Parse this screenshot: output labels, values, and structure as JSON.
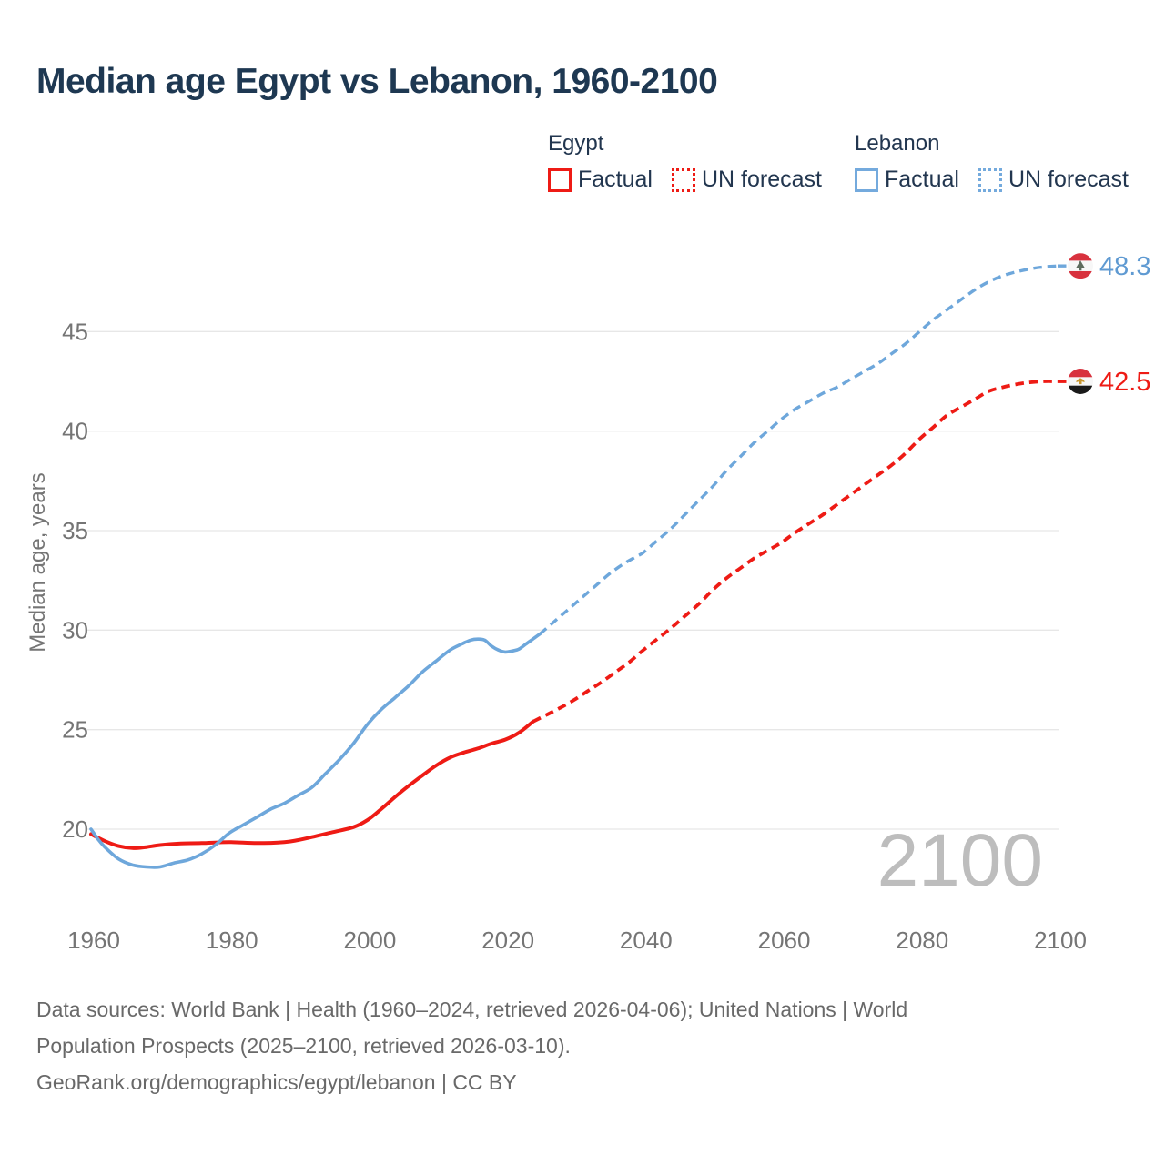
{
  "header": {
    "title": "Median age Egypt vs Lebanon, 1960-2100"
  },
  "legend": {
    "groups": [
      {
        "title": "Egypt",
        "color": "#ee1b15",
        "items": [
          {
            "label": "Factual",
            "style": "solid"
          },
          {
            "label": "UN forecast",
            "style": "dotted"
          }
        ]
      },
      {
        "title": "Lebanon",
        "color": "#74aadd",
        "items": [
          {
            "label": "Factual",
            "style": "solid"
          },
          {
            "label": "UN forecast",
            "style": "dotted"
          }
        ]
      }
    ]
  },
  "chart_data": {
    "type": "line",
    "title": "Median age Egypt vs Lebanon, 1960-2100",
    "xlabel": "",
    "ylabel": "Median age, years",
    "xticks": [
      1960,
      1980,
      2000,
      2020,
      2040,
      2060,
      2080,
      2100
    ],
    "yticks": [
      20,
      25,
      30,
      35,
      40,
      45
    ],
    "xlim": [
      1959,
      2113
    ],
    "ylim": [
      17.5,
      49.5
    ],
    "grid": true,
    "legend_position": "top",
    "watermark": "2100",
    "series": [
      {
        "name": "Egypt factual",
        "color": "#ee1b15",
        "dashed": false,
        "width": 4,
        "points": [
          [
            1960,
            19.75
          ],
          [
            1962,
            19.4
          ],
          [
            1964,
            19.15
          ],
          [
            1966,
            19.05
          ],
          [
            1968,
            19.1
          ],
          [
            1970,
            19.2
          ],
          [
            1973,
            19.28
          ],
          [
            1976,
            19.3
          ],
          [
            1980,
            19.35
          ],
          [
            1984,
            19.3
          ],
          [
            1988,
            19.35
          ],
          [
            1990,
            19.45
          ],
          [
            1992,
            19.6
          ],
          [
            1995,
            19.85
          ],
          [
            1998,
            20.1
          ],
          [
            2000,
            20.45
          ],
          [
            2002,
            21.0
          ],
          [
            2005,
            21.9
          ],
          [
            2008,
            22.7
          ],
          [
            2010,
            23.2
          ],
          [
            2012,
            23.6
          ],
          [
            2014,
            23.85
          ],
          [
            2016,
            24.05
          ],
          [
            2018,
            24.3
          ],
          [
            2020,
            24.5
          ],
          [
            2022,
            24.85
          ],
          [
            2024,
            25.4
          ]
        ]
      },
      {
        "name": "Egypt UN forecast",
        "color": "#ee1b15",
        "dashed": true,
        "width": 3.8,
        "points": [
          [
            2024,
            25.4
          ],
          [
            2026,
            25.75
          ],
          [
            2028,
            26.1
          ],
          [
            2030,
            26.5
          ],
          [
            2032,
            26.95
          ],
          [
            2034,
            27.4
          ],
          [
            2036,
            27.9
          ],
          [
            2038,
            28.4
          ],
          [
            2040,
            29.0
          ],
          [
            2042,
            29.55
          ],
          [
            2044,
            30.1
          ],
          [
            2046,
            30.7
          ],
          [
            2048,
            31.3
          ],
          [
            2050,
            32.0
          ],
          [
            2052,
            32.6
          ],
          [
            2054,
            33.1
          ],
          [
            2056,
            33.6
          ],
          [
            2058,
            34.0
          ],
          [
            2060,
            34.4
          ],
          [
            2062,
            34.9
          ],
          [
            2064,
            35.35
          ],
          [
            2066,
            35.8
          ],
          [
            2068,
            36.3
          ],
          [
            2070,
            36.8
          ],
          [
            2072,
            37.3
          ],
          [
            2074,
            37.8
          ],
          [
            2076,
            38.3
          ],
          [
            2078,
            38.9
          ],
          [
            2080,
            39.6
          ],
          [
            2082,
            40.2
          ],
          [
            2084,
            40.8
          ],
          [
            2086,
            41.2
          ],
          [
            2088,
            41.6
          ],
          [
            2090,
            42.0
          ],
          [
            2092,
            42.2
          ],
          [
            2094,
            42.35
          ],
          [
            2096,
            42.45
          ],
          [
            2098,
            42.5
          ],
          [
            2100,
            42.5
          ]
        ]
      },
      {
        "name": "Lebanon factual",
        "color": "#6ea7db",
        "dashed": false,
        "width": 3.6,
        "points": [
          [
            1960,
            20.0
          ],
          [
            1961,
            19.5
          ],
          [
            1962,
            19.1
          ],
          [
            1964,
            18.5
          ],
          [
            1966,
            18.2
          ],
          [
            1968,
            18.1
          ],
          [
            1970,
            18.1
          ],
          [
            1972,
            18.3
          ],
          [
            1974,
            18.45
          ],
          [
            1976,
            18.75
          ],
          [
            1978,
            19.2
          ],
          [
            1980,
            19.8
          ],
          [
            1982,
            20.2
          ],
          [
            1984,
            20.6
          ],
          [
            1986,
            21.0
          ],
          [
            1988,
            21.3
          ],
          [
            1990,
            21.7
          ],
          [
            1992,
            22.1
          ],
          [
            1994,
            22.8
          ],
          [
            1996,
            23.5
          ],
          [
            1998,
            24.3
          ],
          [
            2000,
            25.25
          ],
          [
            2002,
            26.0
          ],
          [
            2004,
            26.6
          ],
          [
            2006,
            27.2
          ],
          [
            2008,
            27.9
          ],
          [
            2010,
            28.45
          ],
          [
            2012,
            29.0
          ],
          [
            2014,
            29.35
          ],
          [
            2015,
            29.5
          ],
          [
            2016,
            29.55
          ],
          [
            2017,
            29.5
          ],
          [
            2018,
            29.2
          ],
          [
            2019,
            29.0
          ],
          [
            2020,
            28.9
          ],
          [
            2021,
            28.95
          ],
          [
            2022,
            29.05
          ],
          [
            2023,
            29.3
          ],
          [
            2024,
            29.55
          ],
          [
            2025,
            29.8
          ]
        ]
      },
      {
        "name": "Lebanon UN forecast",
        "color": "#6ea7db",
        "dashed": true,
        "width": 3.4,
        "points": [
          [
            2025,
            29.8
          ],
          [
            2027,
            30.4
          ],
          [
            2029,
            31.0
          ],
          [
            2031,
            31.6
          ],
          [
            2033,
            32.2
          ],
          [
            2035,
            32.8
          ],
          [
            2037,
            33.3
          ],
          [
            2039,
            33.7
          ],
          [
            2040,
            33.9
          ],
          [
            2042,
            34.5
          ],
          [
            2044,
            35.1
          ],
          [
            2046,
            35.8
          ],
          [
            2048,
            36.5
          ],
          [
            2050,
            37.2
          ],
          [
            2052,
            38.0
          ],
          [
            2054,
            38.7
          ],
          [
            2056,
            39.4
          ],
          [
            2058,
            40.0
          ],
          [
            2060,
            40.6
          ],
          [
            2062,
            41.1
          ],
          [
            2064,
            41.5
          ],
          [
            2066,
            41.9
          ],
          [
            2068,
            42.2
          ],
          [
            2070,
            42.6
          ],
          [
            2072,
            43.0
          ],
          [
            2074,
            43.4
          ],
          [
            2076,
            43.9
          ],
          [
            2078,
            44.4
          ],
          [
            2080,
            45.0
          ],
          [
            2082,
            45.6
          ],
          [
            2084,
            46.1
          ],
          [
            2086,
            46.6
          ],
          [
            2088,
            47.1
          ],
          [
            2090,
            47.5
          ],
          [
            2092,
            47.8
          ],
          [
            2094,
            48.0
          ],
          [
            2096,
            48.15
          ],
          [
            2098,
            48.25
          ],
          [
            2100,
            48.3
          ]
        ]
      }
    ],
    "end_markers": [
      {
        "series": "Lebanon UN forecast",
        "flag": "lebanon",
        "label": "48.3",
        "value": 48.3,
        "color": "#5f9ad2"
      },
      {
        "series": "Egypt UN forecast",
        "flag": "egypt",
        "label": "42.5",
        "value": 42.5,
        "color": "#ee1b15"
      }
    ]
  },
  "icons": {
    "lebanon-flag-icon": {
      "red": "#d8323e",
      "white": "#f7f7f7",
      "cedar": "#5d6b5d"
    },
    "egypt-flag-icon": {
      "red": "#d8323e",
      "white": "#f7f7f7",
      "black": "#1a1a1a",
      "eagle": "#c8962e"
    }
  },
  "footer": {
    "lines": [
      "Data sources: World Bank | Health (1960–2024, retrieved 2026-04-06); United Nations | World",
      "Population Prospects (2025–2100, retrieved 2026-03-10).",
      "GeoRank.org/demographics/egypt/lebanon | CC BY"
    ]
  }
}
